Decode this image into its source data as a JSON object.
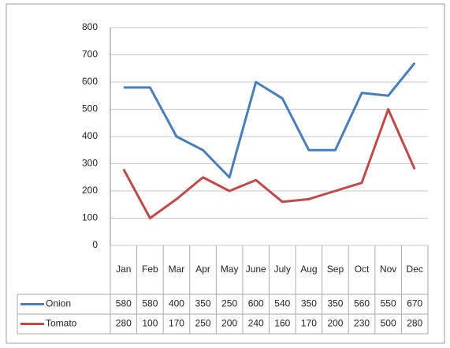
{
  "chart_data": {
    "type": "line",
    "categories": [
      "Jan",
      "Feb",
      "Mar",
      "Apr",
      "May",
      "June",
      "July",
      "Aug",
      "Sep",
      "Oct",
      "Nov",
      "Dec"
    ],
    "series": [
      {
        "name": "Onion",
        "color": "#4a7ebb",
        "values": [
          580,
          580,
          400,
          350,
          250,
          600,
          540,
          350,
          350,
          560,
          550,
          670
        ]
      },
      {
        "name": "Tomato",
        "color": "#be4b48",
        "values": [
          280,
          100,
          170,
          250,
          200,
          240,
          160,
          170,
          200,
          230,
          500,
          280
        ]
      }
    ],
    "ylim": [
      0,
      800
    ],
    "yticks": [
      0,
      100,
      200,
      300,
      400,
      500,
      600,
      700,
      800
    ],
    "grid": true
  }
}
